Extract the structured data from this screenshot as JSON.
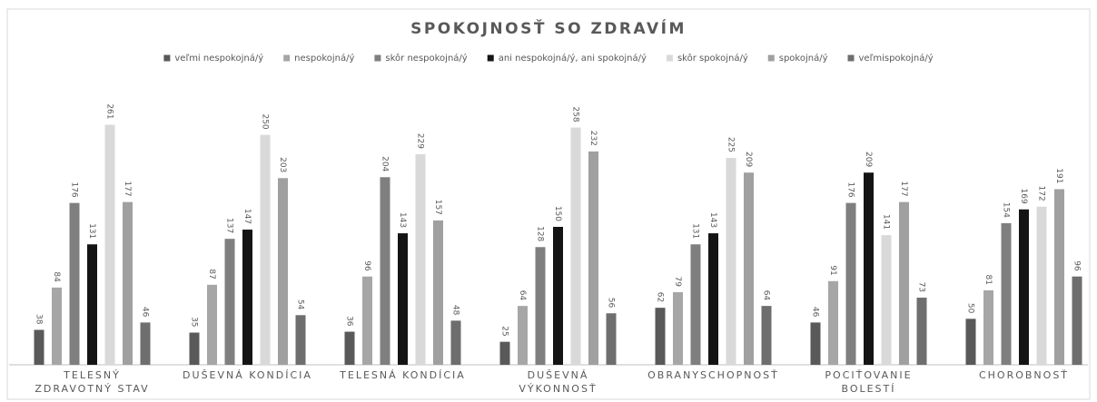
{
  "chart_data": {
    "type": "bar",
    "title": "SPOKOJNOSŤ SO ZDRAVÍM",
    "categories": [
      "TELESNÝ ZDRAVOTNÝ STAV",
      "DUŠEVNÁ KONDÍCIA",
      "TELESNÁ KONDÍCIA",
      "DUŠEVNÁ VÝKONNOSŤ",
      "OBRANYSCHOPNOSŤ",
      "POCIŤOVANIE BOLESTÍ",
      "CHOROBNOSŤ"
    ],
    "series": [
      {
        "name": "veľmi nespokojná/ý",
        "color": "#595959",
        "values": [
          38,
          35,
          36,
          25,
          62,
          46,
          50
        ]
      },
      {
        "name": "nespokojná/ý",
        "color": "#a6a6a6",
        "values": [
          84,
          87,
          96,
          64,
          79,
          91,
          81
        ]
      },
      {
        "name": "skôr nespokojná/ý",
        "color": "#7f7f7f",
        "values": [
          176,
          137,
          204,
          128,
          131,
          176,
          154
        ]
      },
      {
        "name": "ani nespokojná/ý, ani spokojná/ý",
        "color": "#141414",
        "values": [
          131,
          147,
          143,
          150,
          143,
          209,
          169
        ]
      },
      {
        "name": "skôr spokojná/ý",
        "color": "#d9d9d9",
        "values": [
          261,
          250,
          229,
          258,
          225,
          141,
          172
        ]
      },
      {
        "name": "spokojná/ý",
        "color": "#a0a0a0",
        "values": [
          177,
          203,
          157,
          232,
          209,
          177,
          191
        ]
      },
      {
        "name": "veľmispokojná/ý",
        "color": "#6e6e6e",
        "values": [
          46,
          54,
          48,
          56,
          64,
          73,
          96
        ]
      }
    ],
    "ylim": [
      0,
      300
    ],
    "legend": "top"
  }
}
